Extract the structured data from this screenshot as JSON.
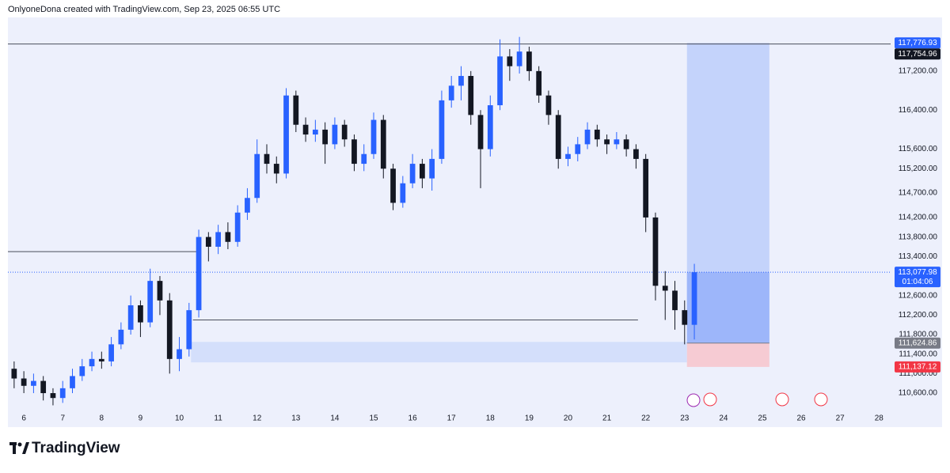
{
  "chart_data": {
    "type": "candlestick",
    "header": "OnlyoneDona created with TradingView.com, Sep 23, 2025 06:55 UTC",
    "brand": "TradingView",
    "up_color": "#2962ff",
    "down_color": "#131722",
    "xlim": [
      5.59,
      28.3
    ],
    "ylim": [
      110260,
      118300
    ],
    "grid": false,
    "xticks": [
      6,
      7,
      8,
      9,
      10,
      11,
      12,
      13,
      14,
      15,
      16,
      17,
      18,
      19,
      20,
      21,
      22,
      23,
      24,
      25,
      26,
      27,
      28
    ],
    "yticks": [
      {
        "value": 117200,
        "label": "117,200.00"
      },
      {
        "value": 116400,
        "label": "116,400.00"
      },
      {
        "value": 115600,
        "label": "115,600.00"
      },
      {
        "value": 115200,
        "label": "115,200.00"
      },
      {
        "value": 114700,
        "label": "114,700.00"
      },
      {
        "value": 114200,
        "label": "114,200.00"
      },
      {
        "value": 113800,
        "label": "113,800.00"
      },
      {
        "value": 113400,
        "label": "113,400.00"
      },
      {
        "value": 112600,
        "label": "112,600.00"
      },
      {
        "value": 112200,
        "label": "112,200.00"
      },
      {
        "value": 111800,
        "label": "111,800.00"
      },
      {
        "value": 111400,
        "label": "111,400.00"
      },
      {
        "value": 111000,
        "label": "111,000.00"
      },
      {
        "value": 110600,
        "label": "110,600.00"
      }
    ],
    "candles": {
      "x": [
        5.75,
        6,
        6.25,
        6.5,
        6.75,
        7,
        7.25,
        7.5,
        7.75,
        8,
        8.25,
        8.5,
        8.75,
        9,
        9.25,
        9.5,
        9.75,
        10,
        10.25,
        10.5,
        10.75,
        11,
        11.25,
        11.5,
        11.75,
        12,
        12.25,
        12.5,
        12.75,
        13,
        13.25,
        13.5,
        13.75,
        14,
        14.25,
        14.5,
        14.75,
        15,
        15.25,
        15.5,
        15.75,
        16,
        16.25,
        16.5,
        16.75,
        17,
        17.25,
        17.5,
        17.75,
        18,
        18.25,
        18.5,
        18.75,
        19,
        19.25,
        19.5,
        19.75,
        20,
        20.25,
        20.5,
        20.75,
        21,
        21.25,
        21.5,
        21.75,
        22,
        22.25,
        22.5,
        22.75,
        23,
        23.25
      ],
      "open": [
        111100,
        110900,
        110750,
        110850,
        110600,
        110500,
        110700,
        110950,
        111150,
        111300,
        111250,
        111600,
        111900,
        112400,
        112050,
        112900,
        112500,
        111300,
        111500,
        112300,
        113800,
        113600,
        113900,
        113700,
        114300,
        114600,
        115500,
        115300,
        115100,
        116700,
        116100,
        115900,
        116000,
        115700,
        116100,
        115800,
        115300,
        115500,
        116200,
        115200,
        114500,
        114900,
        115300,
        115000,
        115400,
        116600,
        116900,
        117100,
        116300,
        115600,
        116500,
        117500,
        117300,
        117600,
        117200,
        116700,
        116300,
        115400,
        115500,
        115700,
        116000,
        115800,
        115700,
        115800,
        115600,
        115400,
        114200,
        112800,
        112700,
        112300,
        112000
      ],
      "high": [
        111250,
        111050,
        111000,
        110950,
        110700,
        110850,
        111100,
        111300,
        111450,
        111450,
        111750,
        112050,
        112600,
        112500,
        113150,
        113000,
        112650,
        111750,
        112450,
        113950,
        113900,
        114050,
        114100,
        114450,
        114800,
        115800,
        115700,
        115450,
        116850,
        116800,
        116250,
        116200,
        116150,
        116250,
        116200,
        115900,
        115700,
        116350,
        116300,
        115300,
        115050,
        115500,
        115400,
        115600,
        116800,
        117100,
        117300,
        117200,
        116400,
        116700,
        117850,
        117650,
        117900,
        117700,
        117300,
        116800,
        116400,
        115650,
        115850,
        116150,
        116100,
        115900,
        115950,
        115900,
        115700,
        115500,
        114300,
        113100,
        112900,
        112500,
        113250
      ],
      "low": [
        110700,
        110600,
        110600,
        110450,
        110350,
        110400,
        110600,
        110850,
        111050,
        111100,
        111150,
        111500,
        111800,
        111750,
        111950,
        112200,
        111000,
        111050,
        111350,
        112150,
        113300,
        113450,
        113550,
        113600,
        114150,
        114500,
        115100,
        114900,
        115000,
        115950,
        115750,
        115750,
        115300,
        115600,
        115650,
        115150,
        115150,
        115400,
        115000,
        114350,
        114400,
        114800,
        114800,
        114750,
        115300,
        116450,
        116600,
        116100,
        114800,
        115450,
        116400,
        117000,
        117150,
        117000,
        116550,
        116100,
        115200,
        115250,
        115350,
        115600,
        115650,
        115500,
        115600,
        115450,
        115200,
        113900,
        112500,
        112100,
        111900,
        111600,
        111700
      ],
      "close": [
        110900,
        110750,
        110850,
        110600,
        110500,
        110700,
        110950,
        111150,
        111300,
        111250,
        111600,
        111900,
        112400,
        112050,
        112900,
        112500,
        111300,
        111500,
        112300,
        113800,
        113600,
        113900,
        113700,
        114300,
        114600,
        115500,
        115300,
        115100,
        116700,
        116100,
        115900,
        116000,
        115700,
        116100,
        115800,
        115300,
        115500,
        116200,
        115200,
        114500,
        114900,
        115300,
        115000,
        115400,
        116600,
        116900,
        117100,
        116300,
        115600,
        116500,
        117500,
        117300,
        117600,
        117200,
        116700,
        116300,
        115400,
        115500,
        115700,
        116000,
        115800,
        115700,
        115800,
        115600,
        115400,
        114200,
        112800,
        112700,
        112300,
        112000,
        113077.98
      ]
    },
    "lines": [
      {
        "value": 117754.96,
        "label": "117,754.96"
      },
      {
        "value": 113500,
        "x": [
          5.59,
          10.45
        ]
      },
      {
        "value": 112100,
        "x": [
          10.35,
          21.8
        ]
      }
    ],
    "zones": [
      {
        "range": [
          111230,
          111650
        ],
        "x": [
          10.3,
          23.06
        ],
        "color": "#d4dffb"
      }
    ],
    "position": {
      "x": [
        23.06,
        25.18
      ],
      "target": {
        "value": 117776.93,
        "label": "117,776.93"
      },
      "entry": {
        "value": 111624.86,
        "label": "111,624.86"
      },
      "stop": {
        "value": 111137.12,
        "label": "111,137.12"
      },
      "profit_color": "#c4d3fb",
      "open_profit_color": "#9db6fa",
      "loss_color": "#f6cbd3"
    },
    "last_price": {
      "value": 113077.98,
      "label": "113,077.98",
      "countdown": "01:04:06"
    }
  }
}
